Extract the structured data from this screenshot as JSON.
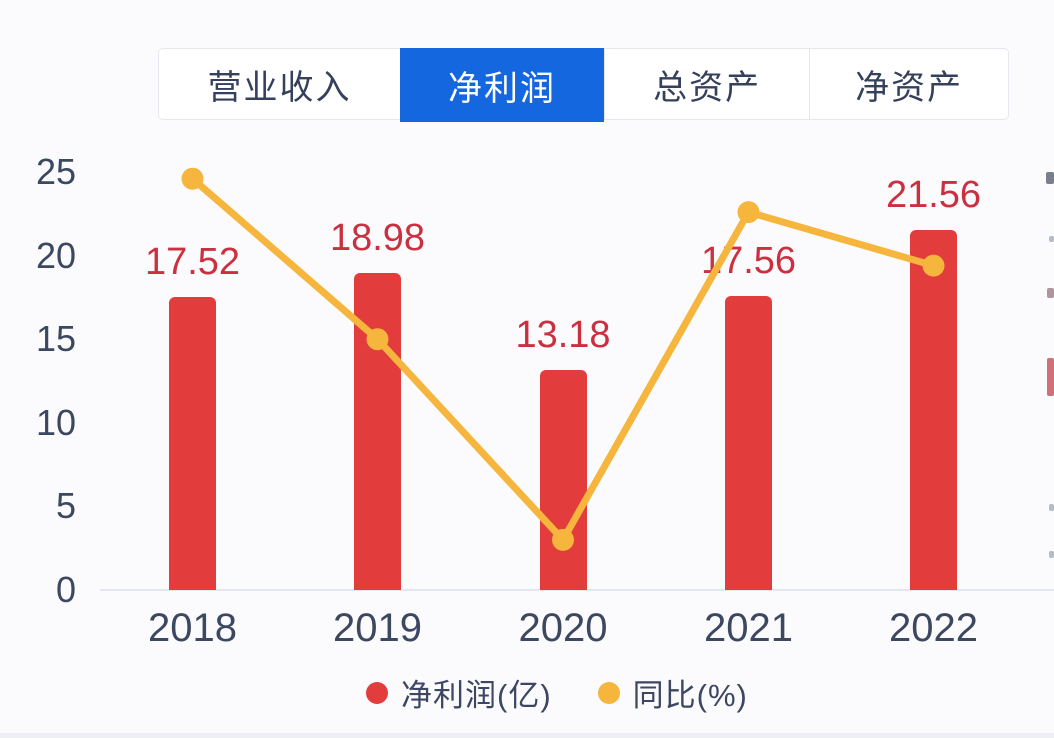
{
  "tabs": {
    "items": [
      {
        "label": "营业收入",
        "active": false
      },
      {
        "label": "净利润",
        "active": true
      },
      {
        "label": "总资产",
        "active": false
      },
      {
        "label": "净资产",
        "active": false
      }
    ]
  },
  "colors": {
    "active_tab_bg": "#1467df",
    "active_tab_text": "#ffffff",
    "tab_text": "#35405c",
    "bar": "#e23c3c",
    "line": "#f6b53c",
    "data_label": "#cb3040",
    "axis_text": "#3c4760",
    "axis_line": "#e5e7ee",
    "legend_text": "#3d4763"
  },
  "chart_data": {
    "type": "bar",
    "subtype": "bar+line combo",
    "categories": [
      "2018",
      "2019",
      "2020",
      "2021",
      "2022"
    ],
    "series": [
      {
        "name": "净利润(亿)",
        "type": "bar",
        "values": [
          17.52,
          18.98,
          13.18,
          17.56,
          21.56
        ],
        "data_labels": [
          "17.52",
          "18.98",
          "13.18",
          "17.56",
          "21.56"
        ],
        "color": "#e23c3c"
      },
      {
        "name": "同比(%)",
        "type": "line",
        "values": [
          24.6,
          15.0,
          3.0,
          22.6,
          19.4
        ],
        "color": "#f6b53c"
      }
    ],
    "title": "",
    "xlabel": "",
    "ylabel": "",
    "y_axis": {
      "ticks": [
        0,
        5,
        10,
        15,
        20,
        25
      ],
      "range": [
        0,
        25
      ]
    },
    "grid": false,
    "legend_position": "bottom",
    "legend": [
      {
        "label": "净利润(亿)",
        "color": "#e23c3c"
      },
      {
        "label": "同比(%)",
        "color": "#f6b53c"
      }
    ]
  }
}
